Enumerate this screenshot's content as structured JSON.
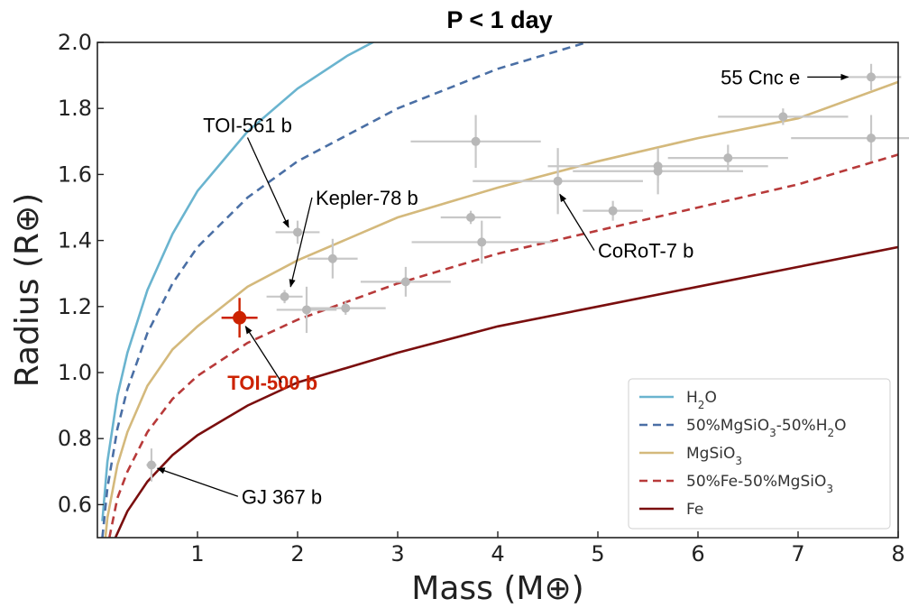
{
  "chart_data": {
    "type": "scatter",
    "title": "P < 1 day",
    "xlabel": "Mass (M⊕)",
    "ylabel": "Radius (R⊕)",
    "xlim": [
      0,
      8
    ],
    "ylim": [
      0.5,
      2.0
    ],
    "xticks": [
      1,
      2,
      3,
      4,
      5,
      6,
      7,
      8
    ],
    "yticks": [
      0.6,
      0.8,
      1.0,
      1.2,
      1.4,
      1.6,
      1.8,
      2.0
    ],
    "xtick_labels": [
      "1",
      "2",
      "3",
      "4",
      "5",
      "6",
      "7",
      "8"
    ],
    "ytick_labels": [
      "0.6",
      "0.8",
      "1.0",
      "1.2",
      "1.4",
      "1.6",
      "1.8",
      "2.0"
    ],
    "grid": false,
    "legend_position": "bottom-right",
    "curves": [
      {
        "name": "H₂O",
        "label_base": "H",
        "label_sub": "2",
        "label_tail": "O",
        "color": "#6ab4cf",
        "dash": "solid",
        "points": [
          [
            0.05,
            0.55
          ],
          [
            0.1,
            0.73
          ],
          [
            0.2,
            0.93
          ],
          [
            0.3,
            1.06
          ],
          [
            0.5,
            1.25
          ],
          [
            0.75,
            1.42
          ],
          [
            1.0,
            1.55
          ],
          [
            1.5,
            1.73
          ],
          [
            2.0,
            1.86
          ],
          [
            2.5,
            1.96
          ],
          [
            3.0,
            2.04
          ],
          [
            3.5,
            2.1
          ]
        ]
      },
      {
        "name": "50%MgSiO₃-50%H₂O",
        "label_base": "50%MgSiO",
        "label_sub": "3",
        "label_tail": "-50%H",
        "label_sub2": "2",
        "label_tail2": "O",
        "color": "#4a6fa5",
        "dash": "dashed",
        "points": [
          [
            0.05,
            0.5
          ],
          [
            0.1,
            0.65
          ],
          [
            0.2,
            0.83
          ],
          [
            0.3,
            0.95
          ],
          [
            0.5,
            1.12
          ],
          [
            0.75,
            1.27
          ],
          [
            1.0,
            1.38
          ],
          [
            1.5,
            1.53
          ],
          [
            2.0,
            1.64
          ],
          [
            3.0,
            1.8
          ],
          [
            4.0,
            1.92
          ],
          [
            5.0,
            2.01
          ]
        ]
      },
      {
        "name": "MgSiO₃",
        "label_base": "MgSiO",
        "label_sub": "3",
        "label_tail": "",
        "color": "#d4b97c",
        "dash": "solid",
        "points": [
          [
            0.08,
            0.5
          ],
          [
            0.1,
            0.56
          ],
          [
            0.2,
            0.72
          ],
          [
            0.3,
            0.82
          ],
          [
            0.5,
            0.96
          ],
          [
            0.75,
            1.07
          ],
          [
            1.0,
            1.14
          ],
          [
            1.5,
            1.26
          ],
          [
            2.0,
            1.34
          ],
          [
            3.0,
            1.47
          ],
          [
            4.0,
            1.56
          ],
          [
            5.0,
            1.64
          ],
          [
            6.0,
            1.71
          ],
          [
            7.0,
            1.77
          ],
          [
            8.0,
            1.88
          ]
        ]
      },
      {
        "name": "50%Fe-50%MgSiO₃",
        "label_base": "50%Fe-50%MgSiO",
        "label_sub": "3",
        "label_tail": "",
        "color": "#b83a3a",
        "dash": "dashed",
        "points": [
          [
            0.12,
            0.5
          ],
          [
            0.2,
            0.62
          ],
          [
            0.3,
            0.7
          ],
          [
            0.5,
            0.82
          ],
          [
            0.75,
            0.92
          ],
          [
            1.0,
            0.99
          ],
          [
            1.5,
            1.09
          ],
          [
            2.0,
            1.16
          ],
          [
            3.0,
            1.27
          ],
          [
            4.0,
            1.36
          ],
          [
            5.0,
            1.43
          ],
          [
            6.0,
            1.5
          ],
          [
            7.0,
            1.57
          ],
          [
            8.0,
            1.66
          ]
        ]
      },
      {
        "name": "Fe",
        "label_base": "Fe",
        "label_sub": "",
        "label_tail": "",
        "color": "#7a0e0e",
        "dash": "solid",
        "points": [
          [
            0.18,
            0.5
          ],
          [
            0.3,
            0.58
          ],
          [
            0.5,
            0.67
          ],
          [
            0.75,
            0.75
          ],
          [
            1.0,
            0.81
          ],
          [
            1.5,
            0.9
          ],
          [
            2.0,
            0.97
          ],
          [
            3.0,
            1.06
          ],
          [
            4.0,
            1.14
          ],
          [
            5.0,
            1.2
          ],
          [
            6.0,
            1.26
          ],
          [
            7.0,
            1.32
          ],
          [
            8.0,
            1.38
          ]
        ]
      }
    ],
    "planets": [
      {
        "x": 0.54,
        "y": 0.72,
        "xerr": 0.05,
        "yerr": 0.05
      },
      {
        "x": 1.87,
        "y": 1.23,
        "xerr": 0.18,
        "yerr": 0.02
      },
      {
        "x": 2.0,
        "y": 1.425,
        "xerr": 0.22,
        "yerr": 0.035
      },
      {
        "x": 2.09,
        "y": 1.19,
        "xerr": 0.3,
        "yerr": 0.07
      },
      {
        "x": 2.35,
        "y": 1.345,
        "xerr": 0.25,
        "yerr": 0.06
      },
      {
        "x": 2.48,
        "y": 1.195,
        "xerr": 0.4,
        "yerr": 0.02
      },
      {
        "x": 3.08,
        "y": 1.275,
        "xerr": 0.45,
        "yerr": 0.045
      },
      {
        "x": 3.73,
        "y": 1.47,
        "xerr": 0.3,
        "yerr": 0.02
      },
      {
        "x": 3.78,
        "y": 1.7,
        "xerr": 0.65,
        "yerr": 0.08
      },
      {
        "x": 3.84,
        "y": 1.395,
        "xerr": 0.7,
        "yerr": 0.065
      },
      {
        "x": 4.6,
        "y": 1.58,
        "xerr": 0.85,
        "yerr": 0.1
      },
      {
        "x": 5.15,
        "y": 1.49,
        "xerr": 0.3,
        "yerr": 0.03
      },
      {
        "x": 5.6,
        "y": 1.625,
        "xerr": 1.1,
        "yerr": 0.05
      },
      {
        "x": 5.6,
        "y": 1.61,
        "xerr": 0.85,
        "yerr": 0.07
      },
      {
        "x": 6.3,
        "y": 1.65,
        "xerr": 0.6,
        "yerr": 0.04
      },
      {
        "x": 6.85,
        "y": 1.775,
        "xerr": 0.65,
        "yerr": 0.025
      },
      {
        "x": 7.73,
        "y": 1.71,
        "xerr": 0.8,
        "yerr": 0.07
      },
      {
        "x": 7.73,
        "y": 1.895,
        "xerr": 0.3,
        "yerr": 0.04
      }
    ],
    "highlight": {
      "name": "TOI-500 b",
      "x": 1.42,
      "y": 1.166,
      "xerr": 0.18,
      "yerr": 0.06,
      "color": "#cc2200"
    },
    "annotations": [
      {
        "text": "55 Cnc e",
        "tx": 7.02,
        "ty": 1.895,
        "ax": 7.5,
        "ay": 1.895,
        "anchor": "end"
      },
      {
        "text": "TOI-561 b",
        "tx": 1.5,
        "ty": 1.75,
        "ax": 1.91,
        "ay": 1.44,
        "anchor": "middle"
      },
      {
        "text": "Kepler-78 b",
        "tx": 2.18,
        "ty": 1.53,
        "ax": 1.93,
        "ay": 1.26,
        "anchor": "start"
      },
      {
        "text": "CoRoT-7 b",
        "tx": 5.0,
        "ty": 1.37,
        "ax": 4.62,
        "ay": 1.54,
        "anchor": "start"
      },
      {
        "text": "TOI-500 b",
        "tx": 1.3,
        "ty": 0.97,
        "ax": 1.48,
        "ay": 1.14,
        "anchor": "start",
        "highlight": true
      },
      {
        "text": "GJ 367 b",
        "tx": 1.44,
        "ty": 0.625,
        "ax": 0.6,
        "ay": 0.71,
        "anchor": "start"
      }
    ]
  }
}
